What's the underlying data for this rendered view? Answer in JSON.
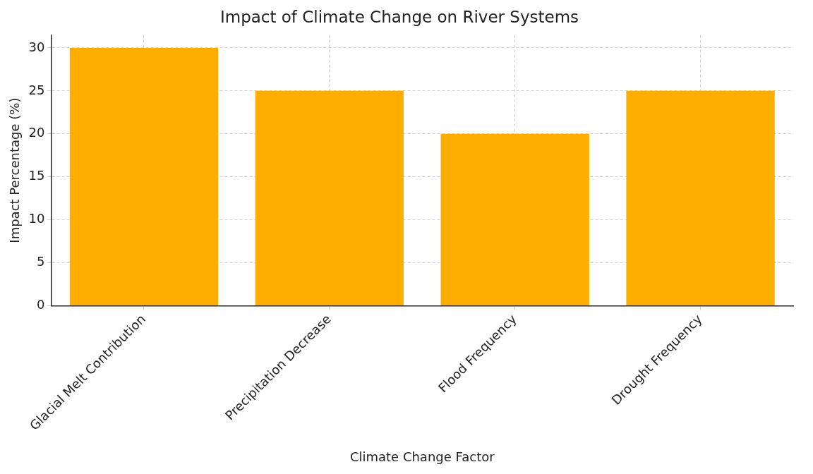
{
  "chart_data": {
    "type": "bar",
    "title": "Impact of Climate Change on River Systems",
    "xlabel": "Climate Change Factor",
    "ylabel": "Impact Percentage (%)",
    "categories": [
      "Glacial Melt Contribution",
      "Precipitation Decrease",
      "Flood Frequency",
      "Drought Frequency"
    ],
    "values": [
      30,
      25,
      20,
      25
    ],
    "color": "#ffae00",
    "ylim": [
      0,
      31.5
    ],
    "yticks": [
      0,
      5,
      10,
      15,
      20,
      25,
      30
    ],
    "grid": true
  }
}
